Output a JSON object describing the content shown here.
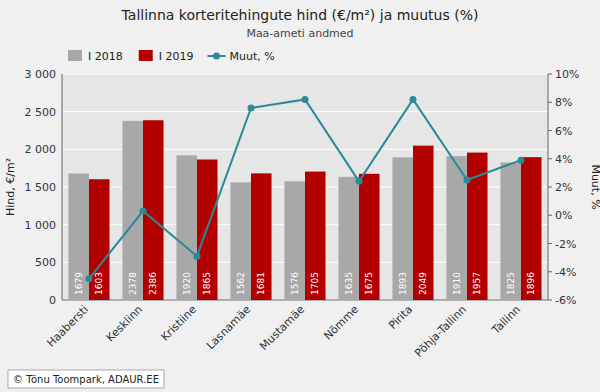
{
  "chart_data": {
    "type": "bar",
    "title": "Tallinna korteritehingute hind (€/m²) ja muutus (%)",
    "subtitle": "Maa-ameti andmed",
    "ylabel": "Hind, €/m²",
    "y2label": "Muut, %",
    "categories": [
      "Haabersti",
      "Kesklinn",
      "Kristiine",
      "Lasnamäe",
      "Mustamäe",
      "Nõmme",
      "Pirita",
      "Põhja-Tallinn",
      "Tallinn"
    ],
    "series": [
      {
        "name": "I 2018",
        "type": "bar",
        "color": "#a8a8a8",
        "data_labels": true,
        "values": [
          1679,
          2378,
          1920,
          1562,
          1576,
          1635,
          1893,
          1910,
          1825
        ]
      },
      {
        "name": "I 2019",
        "type": "bar",
        "color": "#b20000",
        "data_labels": true,
        "values": [
          1603,
          2386,
          1865,
          1681,
          1705,
          1675,
          2049,
          1957,
          1896
        ]
      },
      {
        "name": "Muut, %",
        "type": "line",
        "axis": "y2",
        "color": "#2a8a96",
        "marker": "circle",
        "line_style": "solid",
        "values": [
          -4.5,
          0.3,
          -2.9,
          7.6,
          8.2,
          2.4,
          8.2,
          2.5,
          3.9
        ]
      }
    ],
    "ylim": [
      0,
      3000
    ],
    "yticks": [
      0,
      500,
      {
        "value": 1000,
        "label": "1 000"
      },
      {
        "value": 1500,
        "label": "1 500"
      },
      {
        "value": 2000,
        "label": "2 000"
      },
      {
        "value": 2500,
        "label": "2 500"
      },
      {
        "value": 3000,
        "label": "3 000"
      }
    ],
    "y2lim": [
      -6,
      10
    ],
    "y2ticks": [
      {
        "value": -6,
        "label": "-6%"
      },
      {
        "value": -4,
        "label": "-4%"
      },
      {
        "value": -2,
        "label": "-2%"
      },
      {
        "value": 0,
        "label": "0%"
      },
      {
        "value": 2,
        "label": "2%"
      },
      {
        "value": 4,
        "label": "4%"
      },
      {
        "value": 6,
        "label": "6%"
      },
      {
        "value": 8,
        "label": "8%"
      },
      {
        "value": 10,
        "label": "10%"
      }
    ],
    "grid": true,
    "legend": "upper left",
    "annotations": [
      "© Tõnu Toompark, ADAUR.EE"
    ]
  }
}
